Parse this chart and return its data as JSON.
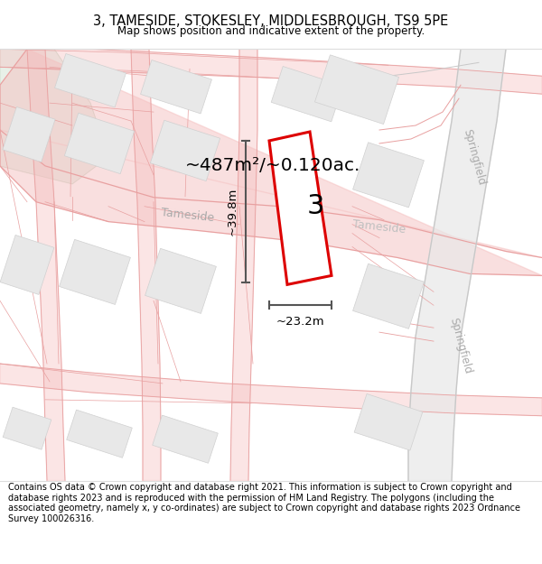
{
  "title": "3, TAMESIDE, STOKESLEY, MIDDLESBROUGH, TS9 5PE",
  "subtitle": "Map shows position and indicative extent of the property.",
  "footer": "Contains OS data © Crown copyright and database right 2021. This information is subject to Crown copyright and database rights 2023 and is reproduced with the permission of HM Land Registry. The polygons (including the associated geometry, namely x, y co-ordinates) are subject to Crown copyright and database rights 2023 Ordnance Survey 100026316.",
  "area_label": "~487m²/~0.120ac.",
  "number_label": "3",
  "width_label": "~23.2m",
  "height_label": "~39.8m",
  "road_color": "#f5c0c0",
  "road_line_color": "#e8a0a0",
  "building_color": "#e8e8e8",
  "building_edge": "#d0d0d0",
  "map_bg": "#ffffff",
  "green_area_color": "#e8f0e8",
  "gray_road_color": "#c8c8c8",
  "dim_line_color": "#555555",
  "street_color": "#bbbbbb",
  "plot_fill": "#ffffff",
  "plot_edge": "#dd0000"
}
